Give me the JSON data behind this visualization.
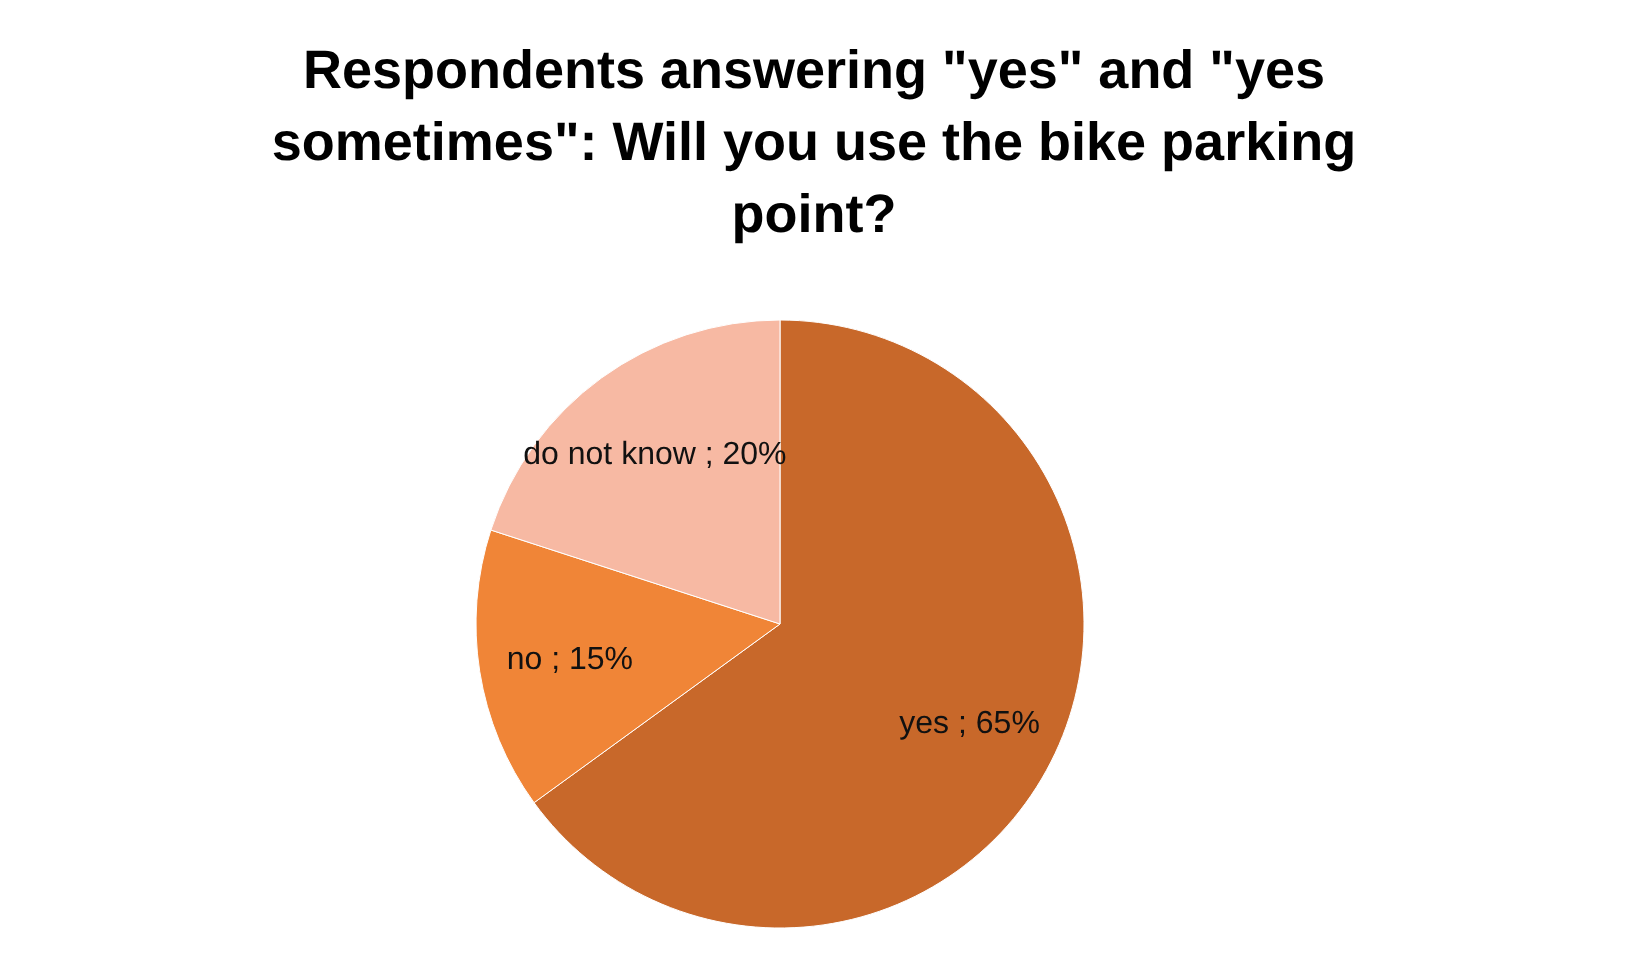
{
  "chart_data": {
    "type": "pie",
    "title": "Respondents answering \"yes\" and \"yes sometimes\": Will you use the bike parking point?",
    "categories": [
      "yes",
      "no",
      "do not know"
    ],
    "values": [
      65,
      15,
      20
    ],
    "colors": [
      "#c8682a",
      "#f08537",
      "#f7b9a3"
    ],
    "value_labels": [
      "65%",
      "15%",
      "20%"
    ],
    "legend": false
  }
}
